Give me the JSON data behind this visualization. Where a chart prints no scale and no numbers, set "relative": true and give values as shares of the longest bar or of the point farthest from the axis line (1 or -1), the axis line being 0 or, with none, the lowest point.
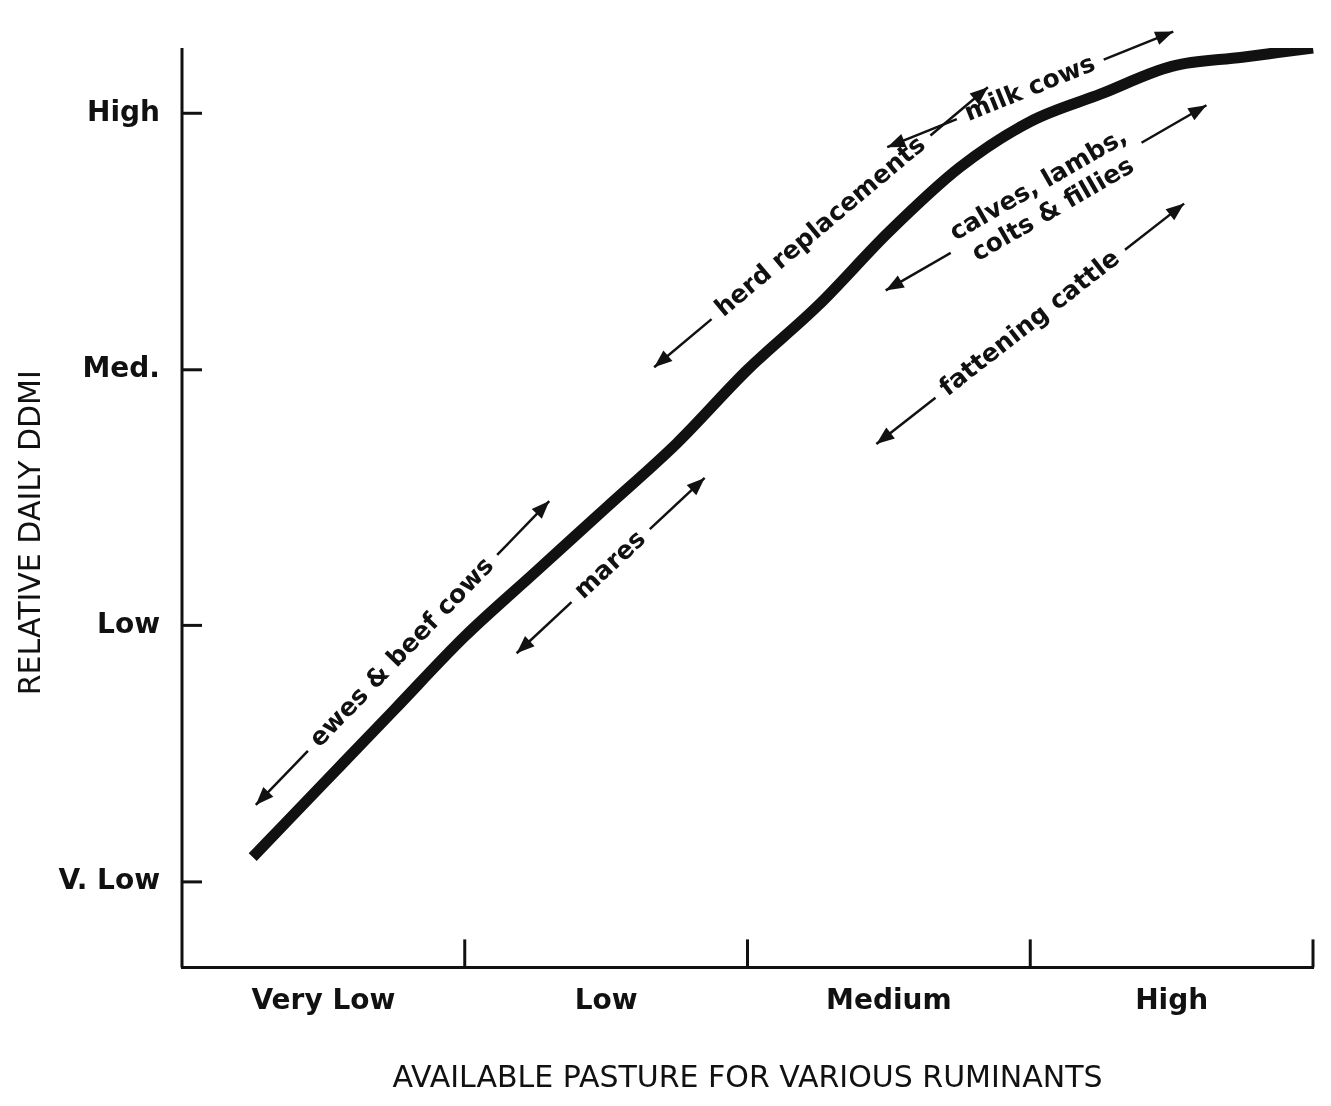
{
  "chart_data": {
    "type": "line",
    "relative": true,
    "xlabel": "AVAILABLE PASTURE FOR VARIOUS RUMINANTS",
    "ylabel": "RELATIVE DAILY DDMI",
    "categories": [
      null,
      null,
      "Very Low",
      null,
      null,
      null,
      "Low",
      null,
      null,
      null,
      "Medium",
      null,
      null,
      null,
      "High",
      null,
      null
    ],
    "series": [
      {
        "color": "#111111",
        "values": [
          null,
          0.12,
          0.2,
          0.28,
          0.36,
          0.43,
          0.5,
          0.57,
          0.65,
          0.72,
          0.8,
          0.87,
          0.92,
          0.95,
          0.98,
          0.99,
          1
        ]
      }
    ],
    "grid": false,
    "legend": false,
    "line_style": "solid",
    "annotations": [
      "ewes & beef cows",
      "mares",
      "herd replacements",
      "milk cows",
      "calves, lambs,\ncolts & fillies",
      "fattening cattle",
      "V. Low",
      "Low",
      "Med.",
      "High"
    ]
  }
}
